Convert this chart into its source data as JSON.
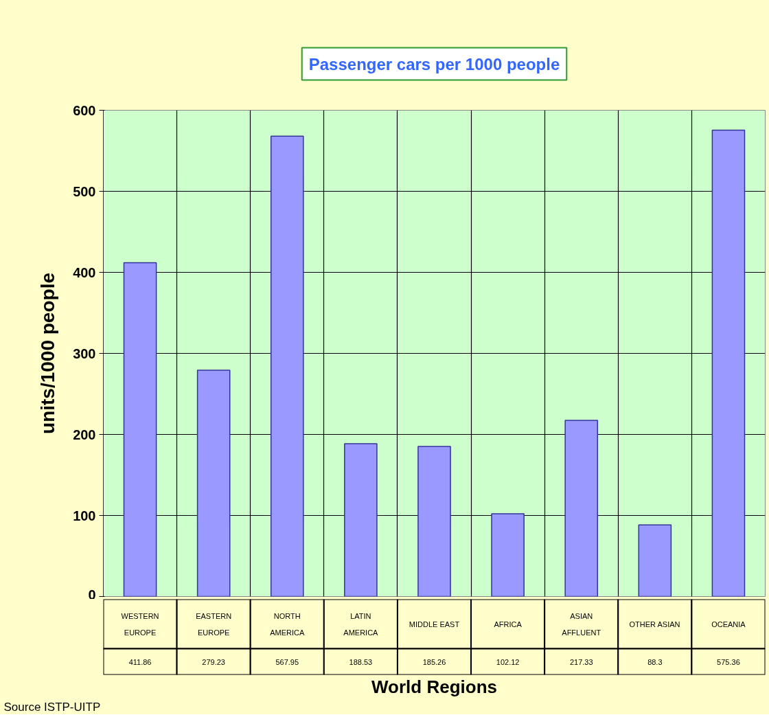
{
  "chart_data": {
    "type": "bar",
    "title": "Passenger cars per 1000 people",
    "xlabel": "World Regions",
    "ylabel": "units/1000 people",
    "categories": [
      "WESTERN EUROPE",
      "EASTERN EUROPE",
      "NORTH AMERICA",
      "LATIN AMERICA",
      "MIDDLE EAST",
      "AFRICA",
      "ASIAN AFFLUENT",
      "OTHER ASIAN",
      "OCEANIA"
    ],
    "values": [
      411.86,
      279.23,
      567.95,
      188.53,
      185.26,
      102.12,
      217.33,
      88.3,
      575.36
    ],
    "color": "#9999ff",
    "ylim": [
      0,
      600
    ],
    "yticks": [
      0,
      100,
      200,
      300,
      400,
      500,
      600
    ],
    "grid": true,
    "data_labels": true,
    "annotations": [
      "Source ISTP-UITP"
    ]
  }
}
